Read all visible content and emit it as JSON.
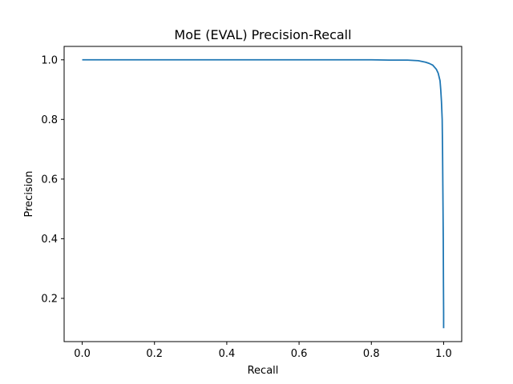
{
  "chart_data": {
    "type": "line",
    "title": "MoE (EVAL) Precision-Recall",
    "xlabel": "Recall",
    "ylabel": "Precision",
    "xlim": [
      -0.05,
      1.05
    ],
    "ylim": [
      0.055,
      1.045
    ],
    "grid": false,
    "xticks": [
      {
        "value": 0.0,
        "label": "0.0"
      },
      {
        "value": 0.2,
        "label": "0.2"
      },
      {
        "value": 0.4,
        "label": "0.4"
      },
      {
        "value": 0.6,
        "label": "0.6"
      },
      {
        "value": 0.8,
        "label": "0.8"
      },
      {
        "value": 1.0,
        "label": "1.0"
      }
    ],
    "yticks": [
      {
        "value": 0.2,
        "label": "0.2"
      },
      {
        "value": 0.4,
        "label": "0.4"
      },
      {
        "value": 0.6,
        "label": "0.6"
      },
      {
        "value": 0.8,
        "label": "0.8"
      },
      {
        "value": 1.0,
        "label": "1.0"
      }
    ],
    "series": [
      {
        "color": "#1f77b4",
        "x": [
          0.0,
          0.2,
          0.4,
          0.6,
          0.8,
          0.85,
          0.9,
          0.93,
          0.95,
          0.96,
          0.97,
          0.975,
          0.98,
          0.985,
          0.99,
          0.992,
          0.994,
          0.996,
          0.997,
          0.998,
          0.999,
          0.9995,
          1.0,
          1.0,
          1.0
        ],
        "y": [
          1.0,
          1.0,
          1.0,
          1.0,
          1.0,
          0.999,
          0.999,
          0.997,
          0.992,
          0.988,
          0.982,
          0.975,
          0.968,
          0.955,
          0.93,
          0.9,
          0.86,
          0.8,
          0.7,
          0.55,
          0.4,
          0.25,
          0.15,
          0.12,
          0.1
        ]
      }
    ]
  }
}
